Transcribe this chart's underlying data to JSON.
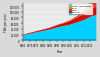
{
  "xlabel": "Year",
  "ylabel": "TWh per year",
  "years": [
    1965,
    1970,
    1975,
    1980,
    1985,
    1990,
    1995,
    2000,
    2005,
    2010,
    2015,
    2019
  ],
  "series_order": [
    "Hydropower",
    "Biofuels",
    "Wind",
    "Solar",
    "Other renewables"
  ],
  "series": {
    "Hydropower": [
      20000,
      25000,
      30000,
      35000,
      40000,
      47000,
      52000,
      57000,
      65000,
      73000,
      85000,
      90000
    ],
    "Biofuels": [
      2000,
      3000,
      4000,
      5000,
      6000,
      8000,
      10000,
      13000,
      17000,
      22000,
      27000,
      30000
    ],
    "Wind": [
      0,
      0,
      0,
      0,
      100,
      400,
      1000,
      2500,
      5000,
      10000,
      18000,
      22000
    ],
    "Solar": [
      0,
      0,
      0,
      0,
      10,
      50,
      150,
      400,
      1000,
      3000,
      8000,
      14000
    ],
    "Other renewables": [
      0,
      0,
      0,
      0,
      200,
      400,
      600,
      800,
      1000,
      1500,
      2000,
      2500
    ]
  },
  "colors": {
    "Hydropower": "#00cfff",
    "Biofuels": "#cc1100",
    "Wind": "#ee3322",
    "Solar": "#44cc22",
    "Other renewables": "#aaaaaa"
  },
  "legend_order": [
    "Other renewables",
    "Solar",
    "Wind",
    "Biofuels",
    "Hydropower"
  ],
  "ylim": [
    0,
    130000
  ],
  "yticks": [
    0,
    20000,
    40000,
    60000,
    80000,
    100000,
    120000
  ],
  "ytick_labels": [
    "0",
    "20,000",
    "40,000",
    "60,000",
    "80,000",
    "100,000",
    "120,000"
  ],
  "xticks": [
    1965,
    1970,
    1975,
    1980,
    1985,
    1990,
    1995,
    2000,
    2005,
    2010,
    2015
  ],
  "background_color": "#d9d9d9",
  "plot_bg_color": "#e8e8e8"
}
